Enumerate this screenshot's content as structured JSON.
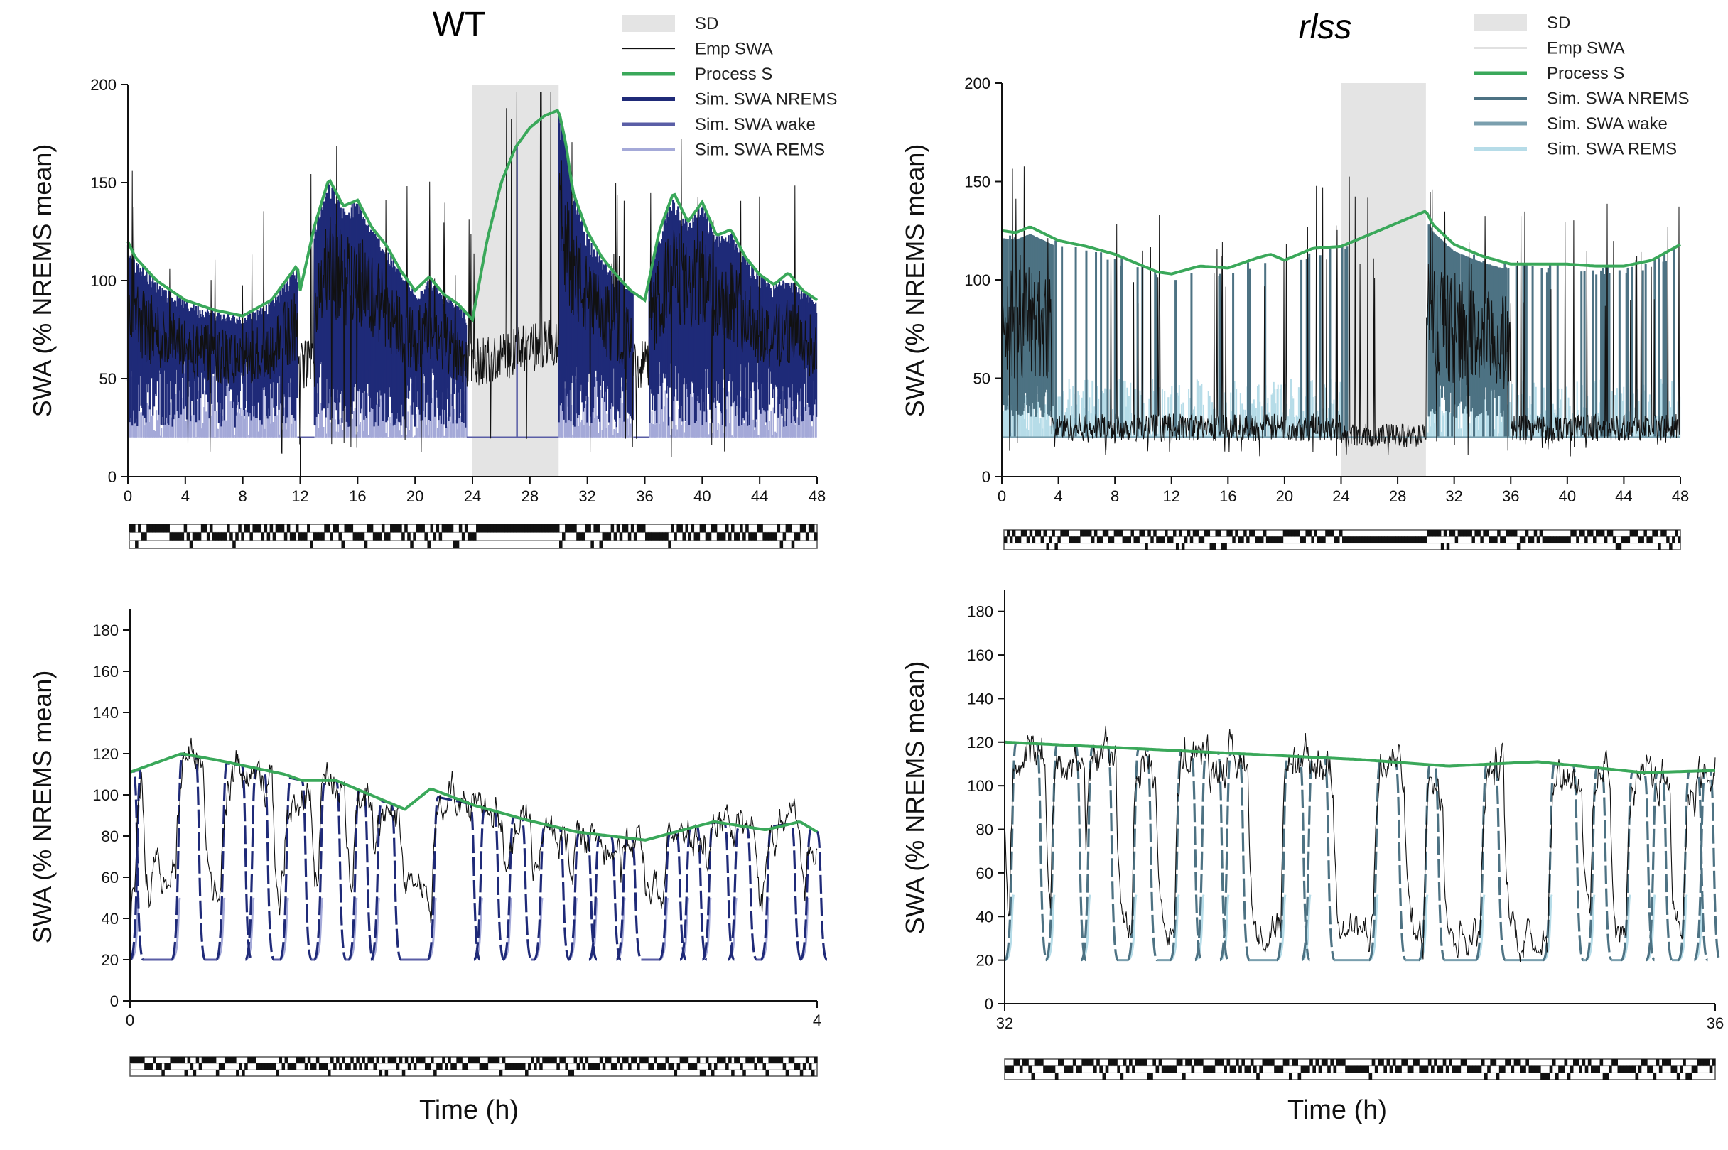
{
  "figure": {
    "panels": {
      "wt": {
        "title": "WT"
      },
      "rlss": {
        "title": "rlss"
      }
    }
  },
  "chart_data": [
    {
      "id": "wt-overview",
      "type": "line",
      "title": "WT",
      "xlabel": "",
      "ylabel": "SWA (% NREMS mean)",
      "xlim": [
        0,
        48
      ],
      "ylim": [
        0,
        200
      ],
      "xticks": [
        0,
        4,
        8,
        12,
        16,
        20,
        24,
        28,
        32,
        36,
        40,
        44,
        48
      ],
      "yticks": [
        0,
        50,
        100,
        150,
        200
      ],
      "shaded_region": {
        "label": "SD",
        "x": [
          24,
          30
        ]
      },
      "legend": {
        "position": "top-right",
        "entries": [
          {
            "label": "SD",
            "color": "#e4e4e4"
          },
          {
            "label": "Emp SWA",
            "color": "#111111"
          },
          {
            "label": "Process S",
            "color": "#3aa85a"
          },
          {
            "label": "Sim. SWA NREMS",
            "color": "#1f2a78"
          },
          {
            "label": "Sim. SWA wake",
            "color": "#5a5ea6"
          },
          {
            "label": "Sim. SWA REMS",
            "color": "#a4a9d8"
          }
        ]
      },
      "series": [
        {
          "name": "Process S",
          "color": "#3aa85a",
          "x": [
            0,
            0.5,
            2,
            4,
            6,
            8,
            10,
            11.8,
            12,
            13,
            14,
            15,
            16,
            17,
            18,
            19,
            20,
            21,
            22,
            23,
            24,
            25,
            26,
            27,
            28,
            29,
            30,
            30.5,
            31,
            32,
            33,
            34,
            35,
            36,
            37,
            38,
            39,
            40,
            41,
            42,
            43,
            44,
            45,
            46,
            47,
            48
          ],
          "y": [
            120,
            112,
            100,
            90,
            85,
            82,
            90,
            108,
            95,
            128,
            152,
            138,
            141,
            127,
            118,
            105,
            95,
            102,
            93,
            88,
            80,
            120,
            150,
            168,
            178,
            184,
            187,
            170,
            145,
            125,
            112,
            103,
            95,
            90,
            125,
            145,
            130,
            140,
            123,
            126,
            112,
            103,
            98,
            104,
            95,
            90
          ]
        },
        {
          "name": "Sim. SWA NREMS",
          "color": "#1f2a78",
          "envelope": "fills from baseline to Process S during NREMS bouts (0-12 h, 13-23.5 h, 30-35 h, 36-48 h)"
        },
        {
          "name": "Sim. SWA wake",
          "color": "#5a5ea6",
          "baseline": 20
        },
        {
          "name": "Sim. SWA REMS",
          "color": "#a4a9d8",
          "range": [
            20,
            55
          ]
        },
        {
          "name": "Emp SWA",
          "color": "#111111",
          "range": [
            10,
            196
          ]
        }
      ]
    },
    {
      "id": "rlss-overview",
      "type": "line",
      "title": "rlss",
      "xlabel": "",
      "ylabel": "SWA (% NREMS mean)",
      "xlim": [
        0,
        48
      ],
      "ylim": [
        0,
        200
      ],
      "xticks": [
        0,
        4,
        8,
        12,
        16,
        20,
        24,
        28,
        32,
        36,
        40,
        44,
        48
      ],
      "yticks": [
        0,
        50,
        100,
        150,
        200
      ],
      "shaded_region": {
        "label": "SD",
        "x": [
          24,
          30
        ]
      },
      "legend": {
        "position": "top-right",
        "entries": [
          {
            "label": "SD",
            "color": "#e4e4e4"
          },
          {
            "label": "Emp SWA",
            "color": "#111111"
          },
          {
            "label": "Process S",
            "color": "#3aa85a"
          },
          {
            "label": "Sim. SWA NREMS",
            "color": "#4d7283"
          },
          {
            "label": "Sim. SWA wake",
            "color": "#7a9fae"
          },
          {
            "label": "Sim. SWA REMS",
            "color": "#b6dce8"
          }
        ]
      },
      "series": [
        {
          "name": "Process S",
          "color": "#3aa85a",
          "x": [
            0,
            1,
            2,
            4,
            6,
            8,
            10,
            11,
            12,
            14,
            16,
            18,
            19,
            20,
            22,
            24,
            26,
            28,
            30,
            30.5,
            32,
            34,
            36,
            38,
            40,
            42,
            44,
            46,
            48
          ],
          "y": [
            125,
            124,
            127,
            120,
            117,
            113,
            107,
            104,
            103,
            107,
            106,
            111,
            113,
            110,
            116,
            117,
            123,
            129,
            135,
            128,
            118,
            112,
            108,
            108,
            108,
            107,
            107,
            110,
            118
          ]
        },
        {
          "name": "Sim. SWA NREMS",
          "color": "#4d7283",
          "envelope": "vertical bouts from 20 up to Process S"
        },
        {
          "name": "Sim. SWA wake",
          "color": "#7a9fae",
          "baseline": 20
        },
        {
          "name": "Sim. SWA REMS",
          "color": "#b6dce8",
          "range": [
            20,
            55
          ]
        },
        {
          "name": "Emp SWA",
          "color": "#111111",
          "range": [
            10,
            165
          ]
        }
      ]
    },
    {
      "id": "wt-zoom",
      "type": "line",
      "title": "",
      "xlabel": "Time (h)",
      "ylabel": "SWA (% NREMS mean)",
      "xlim": [
        0,
        4
      ],
      "ylim": [
        0,
        190
      ],
      "xticks": [
        0,
        4
      ],
      "yticks": [
        0,
        20,
        40,
        60,
        80,
        100,
        120,
        140,
        160,
        180
      ],
      "series": [
        {
          "name": "Process S",
          "color": "#3aa85a",
          "x": [
            0,
            0.3,
            0.5,
            0.9,
            1.0,
            1.2,
            1.4,
            1.6,
            1.75,
            2.0,
            2.3,
            2.6,
            3.0,
            3.4,
            3.7,
            3.9,
            4.0
          ],
          "y": [
            111,
            120,
            117,
            110,
            107,
            107,
            100,
            93,
            103,
            95,
            88,
            82,
            78,
            87,
            83,
            87,
            82
          ]
        },
        {
          "name": "Sim. SWA NREMS",
          "color": "#1f2a78"
        },
        {
          "name": "Sim. SWA wake",
          "color": "#5a5ea6",
          "baseline": 20
        },
        {
          "name": "Sim. SWA REMS",
          "color": "#a4a9d8"
        },
        {
          "name": "Emp SWA",
          "color": "#111111"
        }
      ]
    },
    {
      "id": "rlss-zoom",
      "type": "line",
      "title": "",
      "xlabel": "Time (h)",
      "ylabel": "SWA (% NREMS mean)",
      "xlim": [
        32,
        36
      ],
      "ylim": [
        0,
        190
      ],
      "xticks": [
        32,
        36
      ],
      "yticks": [
        0,
        20,
        40,
        60,
        80,
        100,
        120,
        140,
        160,
        180
      ],
      "series": [
        {
          "name": "Process S",
          "color": "#3aa85a",
          "x": [
            32,
            33,
            34,
            34.5,
            35,
            35.6,
            36
          ],
          "y": [
            120,
            116,
            112,
            109,
            111,
            106,
            107
          ]
        },
        {
          "name": "Sim. SWA NREMS",
          "color": "#4d7283"
        },
        {
          "name": "Sim. SWA wake",
          "color": "#7a9fae",
          "baseline": 20
        },
        {
          "name": "Sim. SWA REMS",
          "color": "#b6dce8"
        },
        {
          "name": "Emp SWA",
          "color": "#111111"
        }
      ]
    }
  ]
}
